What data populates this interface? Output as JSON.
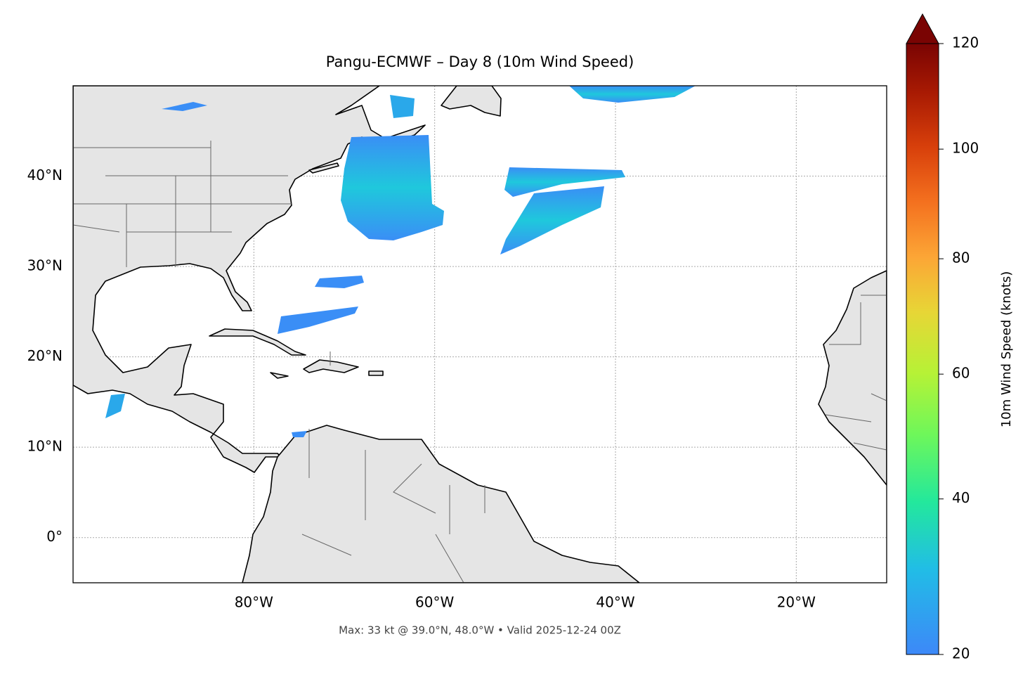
{
  "map": {
    "title": "Pangu-ECMWF – Day 8 (10m Wind Speed)",
    "xlim": [
      -100,
      -10
    ],
    "ylim": [
      -5,
      50
    ],
    "xticks": [
      {
        "value": -80,
        "label": "80°W"
      },
      {
        "value": -60,
        "label": "60°W"
      },
      {
        "value": -40,
        "label": "40°W"
      },
      {
        "value": -20,
        "label": "20°W"
      }
    ],
    "yticks": [
      {
        "value": 0,
        "label": "0°"
      },
      {
        "value": 10,
        "label": "10°N"
      },
      {
        "value": 20,
        "label": "20°N"
      },
      {
        "value": 30,
        "label": "30°N"
      },
      {
        "value": 40,
        "label": "40°N"
      }
    ],
    "grid": true,
    "footer": "Max: 33 kt @ 39.0°N, 48.0°W • Valid 2025-12-24 00Z"
  },
  "colorbar": {
    "label": "10m Wind Speed (knots)",
    "lim": [
      20,
      120
    ],
    "ticks": [
      20,
      40,
      60,
      80,
      100,
      120
    ],
    "gamma": 0.85
  }
}
